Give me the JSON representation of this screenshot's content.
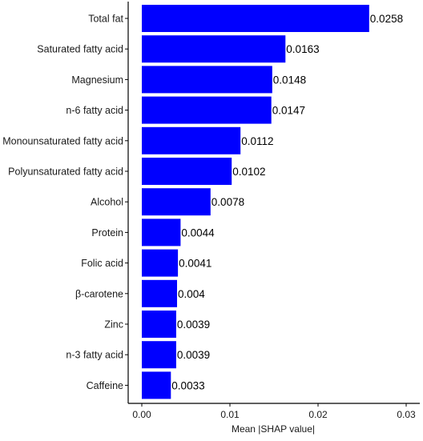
{
  "chart_data": {
    "type": "bar",
    "orientation": "horizontal",
    "categories": [
      "Total fat",
      "Saturated fatty acid",
      "Magnesium",
      "n-6 fatty acid",
      "Monounsaturated fatty acid",
      "Polyunsaturated fatty acid",
      "Alcohol",
      "Protein",
      "Folic acid",
      "β-carotene",
      "Zinc",
      "n-3 fatty acid",
      "Caffeine"
    ],
    "values": [
      0.0258,
      0.0163,
      0.0148,
      0.0147,
      0.0112,
      0.0102,
      0.0078,
      0.0044,
      0.0041,
      0.004,
      0.0039,
      0.0039,
      0.0033
    ],
    "value_labels": [
      "0.0258",
      "0.0163",
      "0.0148",
      "0.0147",
      "0.0112",
      "0.0102",
      "0.0078",
      "0.0044",
      "0.0041",
      "0.004",
      "0.0039",
      "0.0039",
      "0.0033"
    ],
    "xlabel": "Mean |SHAP value|",
    "xlim": [
      0,
      0.03
    ],
    "xticks": [
      0.0,
      0.01,
      0.02,
      0.03
    ],
    "xtick_labels": [
      "0.00",
      "0.01",
      "0.02",
      "0.03"
    ],
    "bar_color": "#0000ff",
    "grid": false,
    "legend": "none"
  }
}
